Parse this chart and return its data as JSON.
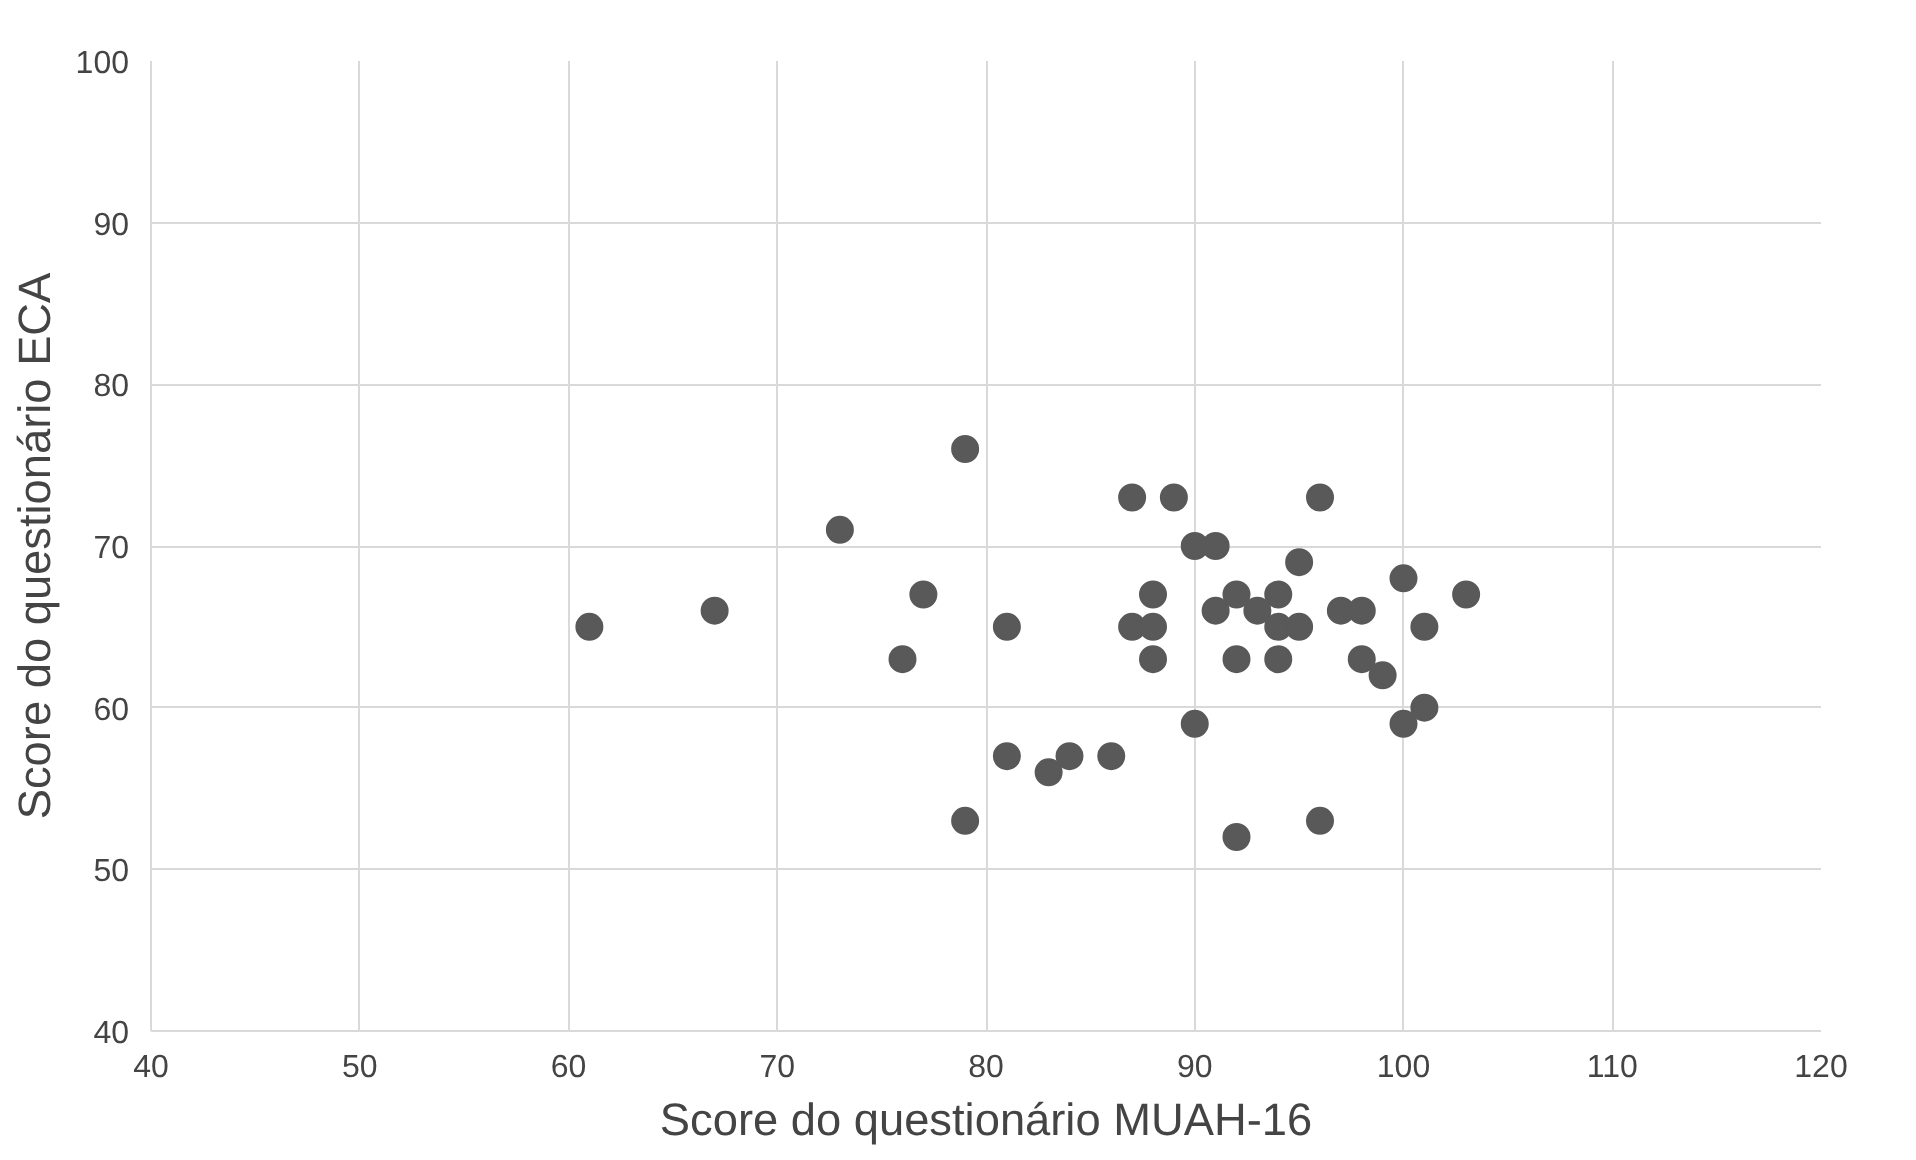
{
  "chart_data": {
    "type": "scatter",
    "xlabel": "Score do questionário MUAH-16",
    "ylabel": "Score do questionário ECA",
    "x": [
      61,
      67,
      73,
      76,
      77,
      79,
      79,
      81,
      81,
      83,
      84,
      86,
      87,
      87,
      88,
      88,
      88,
      89,
      90,
      91,
      90,
      91,
      92,
      92,
      92,
      93,
      94,
      94,
      94,
      95,
      95,
      96,
      96,
      97,
      98,
      98,
      99,
      100,
      100,
      101,
      101,
      103
    ],
    "series": [
      {
        "color": "#595959",
        "values": [
          65,
          66,
          71,
          63,
          67,
          76,
          53,
          65,
          57,
          56,
          57,
          57,
          73,
          65,
          67,
          65,
          63,
          73,
          70,
          70,
          59,
          66,
          67,
          63,
          52,
          66,
          67,
          65,
          63,
          69,
          65,
          73,
          53,
          66,
          66,
          63,
          62,
          68,
          59,
          60,
          65,
          67
        ]
      }
    ],
    "xlim": [
      40,
      120
    ],
    "ylim": [
      40,
      100
    ],
    "xticks": [
      40,
      50,
      60,
      70,
      80,
      90,
      100,
      110,
      120
    ],
    "yticks": [
      40,
      50,
      60,
      70,
      80,
      90,
      100
    ],
    "grid": true,
    "marker": "circle"
  }
}
